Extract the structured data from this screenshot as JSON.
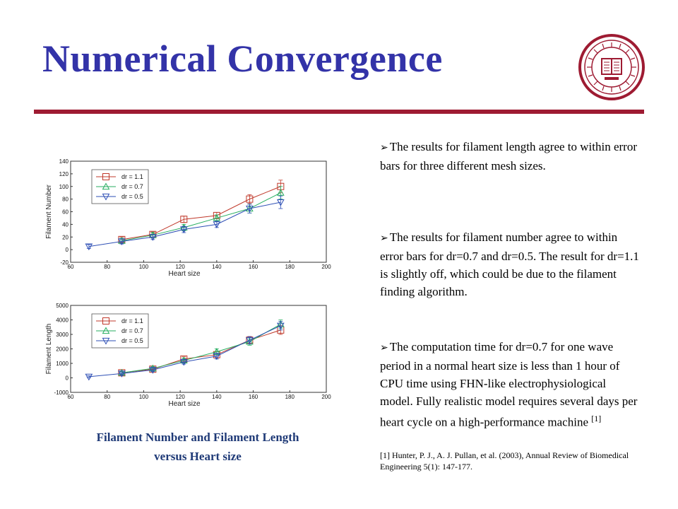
{
  "slide": {
    "title": "Numerical Convergence",
    "accent_color": "#3333a8",
    "rule_color": "#9e1b32",
    "logo_icon": "indiana-university-seal-icon",
    "logo_text": "INDIANA UNIVERSITY SIGILLUM MDCCCXX"
  },
  "bullets": [
    {
      "icon": "arrow-bullet-icon",
      "text": "The results for filament length agree to within error bars for three different mesh sizes."
    },
    {
      "icon": "arrow-bullet-icon",
      "text": "The results for filament number agree to within error bars for dr=0.7 and dr=0.5. The result for dr=1.1 is slightly off, which could be due to the filament finding algorithm."
    },
    {
      "icon": "arrow-bullet-icon",
      "text": "The computation time for dr=0.7 for one wave period in a normal heart size is less than 1 hour of CPU time using FHN-like electrophysiological model. Fully realistic model requires several days per heart cycle on a high-performance machine",
      "superscript": "[1]"
    }
  ],
  "reference": "[1] Hunter, P. J., A. J. Pullan, et al. (2003), Annual Review of Biomedical Engineering 5(1): 147-177.",
  "caption": {
    "line1": "Filament Number and Filament Length",
    "line2": "versus Heart size",
    "color": "#1f3a77"
  },
  "chart_data": [
    {
      "type": "line",
      "xlabel": "Heart size",
      "ylabel": "Filament Number",
      "xlim": [
        60,
        200
      ],
      "ylim": [
        -20,
        140
      ],
      "xticks": [
        60,
        80,
        100,
        120,
        140,
        160,
        180,
        200
      ],
      "yticks": [
        -20,
        0,
        20,
        40,
        60,
        80,
        100,
        120,
        140
      ],
      "legend_position": "top-left",
      "grid": false,
      "series": [
        {
          "name": "dr = 1.1",
          "marker": "square",
          "color": "#c0392b",
          "x": [
            88,
            105,
            122,
            140,
            158,
            175
          ],
          "y": [
            16,
            24,
            48,
            54,
            80,
            100
          ],
          "err": [
            4,
            4,
            5,
            5,
            7,
            10
          ]
        },
        {
          "name": "dr = 0.7",
          "marker": "triangle-up",
          "color": "#27ae60",
          "x": [
            88,
            105,
            122,
            140,
            158,
            175
          ],
          "y": [
            14,
            23,
            35,
            50,
            65,
            90
          ],
          "err": [
            4,
            4,
            5,
            5,
            7,
            10
          ]
        },
        {
          "name": "dr = 0.5",
          "marker": "triangle-down",
          "color": "#2e4fb5",
          "x": [
            70,
            88,
            105,
            122,
            140,
            158,
            175
          ],
          "y": [
            5,
            13,
            20,
            32,
            40,
            65,
            75
          ],
          "err": [
            3,
            4,
            4,
            5,
            5,
            7,
            10
          ]
        }
      ]
    },
    {
      "type": "line",
      "xlabel": "Heart size",
      "ylabel": "Filament Length",
      "xlim": [
        60,
        200
      ],
      "ylim": [
        -1000,
        5000
      ],
      "xticks": [
        60,
        80,
        100,
        120,
        140,
        160,
        180,
        200
      ],
      "yticks": [
        -1000,
        0,
        1000,
        2000,
        3000,
        4000,
        5000
      ],
      "legend_position": "top-left",
      "grid": false,
      "series": [
        {
          "name": "dr = 1.1",
          "marker": "square",
          "color": "#c0392b",
          "x": [
            88,
            105,
            122,
            140,
            158,
            175
          ],
          "y": [
            350,
            600,
            1300,
            1600,
            2600,
            3300
          ],
          "err": [
            100,
            120,
            150,
            200,
            250,
            300
          ]
        },
        {
          "name": "dr = 0.7",
          "marker": "triangle-up",
          "color": "#27ae60",
          "x": [
            88,
            105,
            122,
            140,
            158,
            175
          ],
          "y": [
            350,
            650,
            1200,
            1800,
            2500,
            3700
          ],
          "err": [
            100,
            120,
            150,
            200,
            250,
            300
          ]
        },
        {
          "name": "dr = 0.5",
          "marker": "triangle-down",
          "color": "#2e4fb5",
          "x": [
            70,
            88,
            105,
            122,
            140,
            158,
            175
          ],
          "y": [
            80,
            300,
            550,
            1100,
            1500,
            2600,
            3600
          ],
          "err": [
            60,
            100,
            120,
            150,
            200,
            250,
            300
          ]
        }
      ]
    }
  ]
}
